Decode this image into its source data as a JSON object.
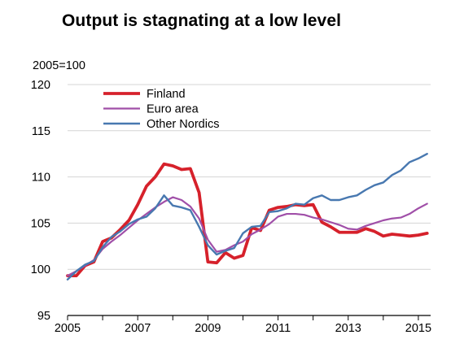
{
  "chart_data": {
    "type": "line",
    "title": "Output is stagnating at a low level",
    "ylabel": "2005=100",
    "xlabel": "",
    "xlim": [
      2005,
      2015.4
    ],
    "ylim": [
      95,
      120
    ],
    "yticks": [
      95,
      100,
      105,
      110,
      115,
      120
    ],
    "xticks": [
      2005,
      2007,
      2009,
      2011,
      2013,
      2015
    ],
    "legend": "top-left",
    "grid": "horizontal",
    "series": [
      {
        "name": "Finland",
        "color": "#d6212b",
        "x": [
          2005.0,
          2005.25,
          2005.5,
          2005.75,
          2006.0,
          2006.25,
          2006.5,
          2006.75,
          2007.0,
          2007.25,
          2007.5,
          2007.75,
          2008.0,
          2008.25,
          2008.5,
          2008.75,
          2009.0,
          2009.25,
          2009.5,
          2009.75,
          2010.0,
          2010.25,
          2010.5,
          2010.75,
          2011.0,
          2011.25,
          2011.5,
          2011.75,
          2012.0,
          2012.25,
          2012.5,
          2012.75,
          2013.0,
          2013.25,
          2013.5,
          2013.75,
          2014.0,
          2014.25,
          2014.5,
          2014.75,
          2015.0,
          2015.25
        ],
        "values": [
          99.3,
          99.3,
          100.4,
          100.8,
          103.0,
          103.4,
          104.3,
          105.3,
          107.0,
          109.0,
          110.0,
          111.4,
          111.2,
          110.8,
          110.9,
          108.3,
          100.8,
          100.7,
          101.8,
          101.2,
          101.5,
          104.5,
          104.2,
          106.4,
          106.7,
          106.8,
          107.0,
          106.9,
          107.0,
          105.1,
          104.6,
          104.0,
          104.0,
          104.0,
          104.4,
          104.1,
          103.6,
          103.8,
          103.7,
          103.6,
          103.7,
          103.9
        ]
      },
      {
        "name": "Euro area",
        "color": "#a04fa8",
        "x": [
          2005.0,
          2005.25,
          2005.5,
          2005.75,
          2006.0,
          2006.25,
          2006.5,
          2006.75,
          2007.0,
          2007.25,
          2007.5,
          2007.75,
          2008.0,
          2008.25,
          2008.5,
          2008.75,
          2009.0,
          2009.25,
          2009.5,
          2009.75,
          2010.0,
          2010.25,
          2010.5,
          2010.75,
          2011.0,
          2011.25,
          2011.5,
          2011.75,
          2012.0,
          2012.25,
          2012.5,
          2012.75,
          2013.0,
          2013.25,
          2013.5,
          2013.75,
          2014.0,
          2014.25,
          2014.5,
          2014.75,
          2015.0,
          2015.25
        ],
        "values": [
          99.3,
          99.8,
          100.4,
          101.0,
          102.2,
          103.0,
          103.7,
          104.5,
          105.3,
          106.0,
          106.7,
          107.3,
          107.8,
          107.5,
          106.8,
          105.5,
          103.2,
          101.9,
          102.1,
          102.6,
          103.0,
          103.8,
          104.3,
          104.9,
          105.7,
          106.0,
          106.0,
          105.9,
          105.6,
          105.4,
          105.1,
          104.8,
          104.4,
          104.3,
          104.7,
          105.0,
          105.3,
          105.5,
          105.6,
          106.0,
          106.6,
          107.1
        ]
      },
      {
        "name": "Other Nordics",
        "color": "#4878b0",
        "x": [
          2005.0,
          2005.25,
          2005.5,
          2005.75,
          2006.0,
          2006.25,
          2006.5,
          2006.75,
          2007.0,
          2007.25,
          2007.5,
          2007.75,
          2008.0,
          2008.25,
          2008.5,
          2008.75,
          2009.0,
          2009.25,
          2009.5,
          2009.75,
          2010.0,
          2010.25,
          2010.5,
          2010.75,
          2011.0,
          2011.25,
          2011.5,
          2011.75,
          2012.0,
          2012.25,
          2012.5,
          2012.75,
          2013.0,
          2013.25,
          2013.5,
          2013.75,
          2014.0,
          2014.25,
          2014.5,
          2014.75,
          2015.0,
          2015.25
        ],
        "values": [
          98.9,
          99.8,
          100.5,
          100.9,
          102.4,
          103.5,
          104.1,
          104.9,
          105.4,
          105.7,
          106.6,
          108.0,
          106.9,
          106.7,
          106.4,
          104.6,
          102.6,
          101.6,
          102.0,
          102.3,
          103.9,
          104.6,
          104.7,
          106.2,
          106.3,
          106.6,
          107.1,
          107.0,
          107.7,
          108.0,
          107.5,
          107.5,
          107.8,
          108.0,
          108.6,
          109.1,
          109.4,
          110.2,
          110.7,
          111.6,
          112.0,
          112.5
        ]
      }
    ]
  }
}
